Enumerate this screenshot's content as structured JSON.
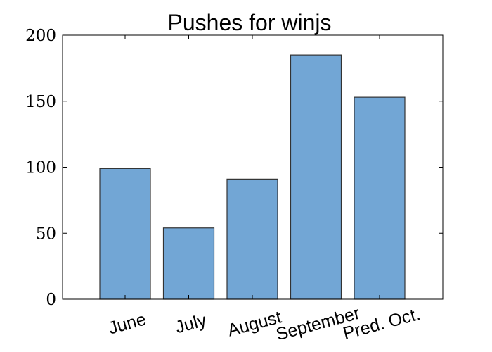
{
  "chart_data": {
    "type": "bar",
    "title": "Pushes for winjs",
    "xlabel": "",
    "ylabel": "",
    "categories": [
      "June",
      "July",
      "August",
      "September",
      "Pred. Oct."
    ],
    "values": [
      99,
      54,
      91,
      185,
      153
    ],
    "ylim": [
      0,
      200
    ],
    "yticks": [
      0,
      50,
      100,
      150,
      200
    ],
    "ytick_labels": [
      "0",
      "50",
      "100",
      "150",
      "200"
    ],
    "xtick_rotation_deg": -15,
    "bar_color": "#72a6d5",
    "bar_edge_color": "#333333",
    "grid": false,
    "legend": "none"
  }
}
